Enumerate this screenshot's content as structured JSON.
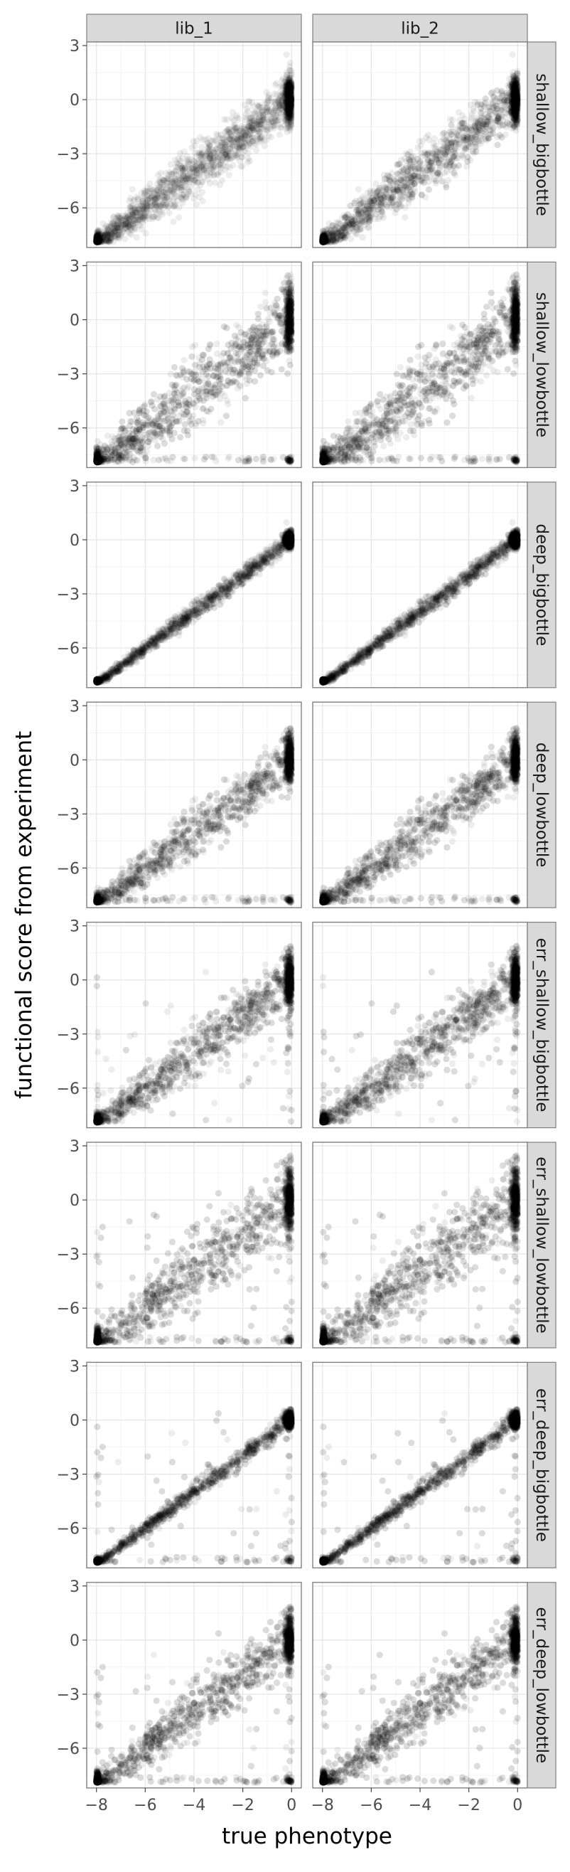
{
  "chart_data": {
    "type": "scatter",
    "xlabel": "true phenotype",
    "ylabel": "functional score from experiment",
    "xlim": [
      -8.4,
      0.4
    ],
    "ylim": [
      -8.2,
      3.2
    ],
    "x_ticks": [
      -8,
      -6,
      -4,
      -2,
      0
    ],
    "y_ticks": [
      3,
      0,
      -3,
      -6
    ],
    "x_tick_labels": [
      "−8",
      "−6",
      "−4",
      "−2",
      "0"
    ],
    "y_tick_labels": [
      "3",
      "0",
      "−3",
      "−6"
    ],
    "grid": true,
    "point_color": "#000000",
    "point_alpha": 0.07,
    "columns": [
      "lib_1",
      "lib_2"
    ],
    "rows": [
      {
        "label": "shallow_bigbottle",
        "noise": 0.7,
        "low_band": false,
        "error_points": false
      },
      {
        "label": "shallow_lowbottle",
        "noise": 1.0,
        "low_band": true,
        "error_points": false
      },
      {
        "label": "deep_bigbottle",
        "noise": 0.25,
        "low_band": false,
        "error_points": false
      },
      {
        "label": "deep_lowbottle",
        "noise": 0.7,
        "low_band": true,
        "error_points": false
      },
      {
        "label": "err_shallow_bigbottle",
        "noise": 0.75,
        "low_band": false,
        "error_points": true
      },
      {
        "label": "err_shallow_lowbottle",
        "noise": 1.0,
        "low_band": true,
        "error_points": true
      },
      {
        "label": "err_deep_bigbottle",
        "noise": 0.25,
        "low_band": true,
        "error_points": true
      },
      {
        "label": "err_deep_lowbottle",
        "noise": 0.75,
        "low_band": true,
        "error_points": true
      }
    ]
  }
}
